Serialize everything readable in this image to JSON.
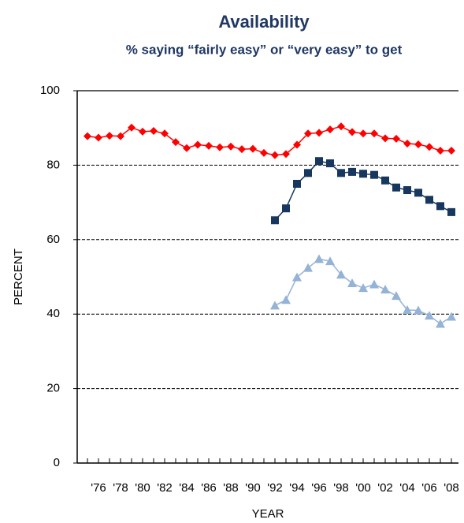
{
  "chart_data": {
    "type": "line",
    "title": "Availability",
    "subtitle": "% saying “fairly easy” or “very easy” to get",
    "x_label": "YEAR",
    "y_label": "PERCENT",
    "categories": [
      null,
      "'76",
      null,
      "'78",
      null,
      "'80",
      null,
      "'82",
      null,
      "'84",
      null,
      "'86",
      null,
      "'88",
      null,
      "'90",
      null,
      "'92",
      null,
      "'94",
      null,
      "'96",
      null,
      "'98",
      null,
      "'00",
      null,
      "'02",
      null,
      "'04",
      null,
      "'06",
      null,
      "'08"
    ],
    "series": [
      {
        "color": "#ff0000",
        "marker": "diamond",
        "values": [
          87.8,
          87.4,
          87.9,
          87.8,
          90.1,
          89.0,
          89.2,
          88.5,
          86.2,
          84.6,
          85.5,
          85.2,
          84.8,
          85.0,
          84.3,
          84.4,
          83.3,
          82.7,
          83.0,
          85.5,
          88.5,
          88.7,
          89.6,
          90.4,
          88.9,
          88.5,
          88.5,
          87.2,
          87.1,
          85.8,
          85.6,
          84.9,
          83.9,
          83.9
        ]
      },
      {
        "color": "#17375e",
        "marker": "square",
        "values": [
          null,
          null,
          null,
          null,
          null,
          null,
          null,
          null,
          null,
          null,
          null,
          null,
          null,
          null,
          null,
          null,
          null,
          65.2,
          68.4,
          75.0,
          77.9,
          81.1,
          80.5,
          77.9,
          78.2,
          77.7,
          77.4,
          75.9,
          74.0,
          73.3,
          72.6,
          70.7,
          69.0,
          67.4
        ]
      },
      {
        "color": "#95b3d7",
        "marker": "triangle",
        "values": [
          null,
          null,
          null,
          null,
          null,
          null,
          null,
          null,
          null,
          null,
          null,
          null,
          null,
          null,
          null,
          null,
          null,
          42.3,
          43.8,
          49.9,
          52.4,
          54.8,
          54.2,
          50.6,
          48.3,
          47.0,
          48.0,
          46.6,
          44.9,
          41.1,
          41.0,
          39.6,
          37.4,
          39.3
        ]
      }
    ],
    "ylim": [
      0,
      100
    ],
    "yticks": [
      0,
      20,
      40,
      60,
      80,
      100
    ],
    "grid": true
  }
}
